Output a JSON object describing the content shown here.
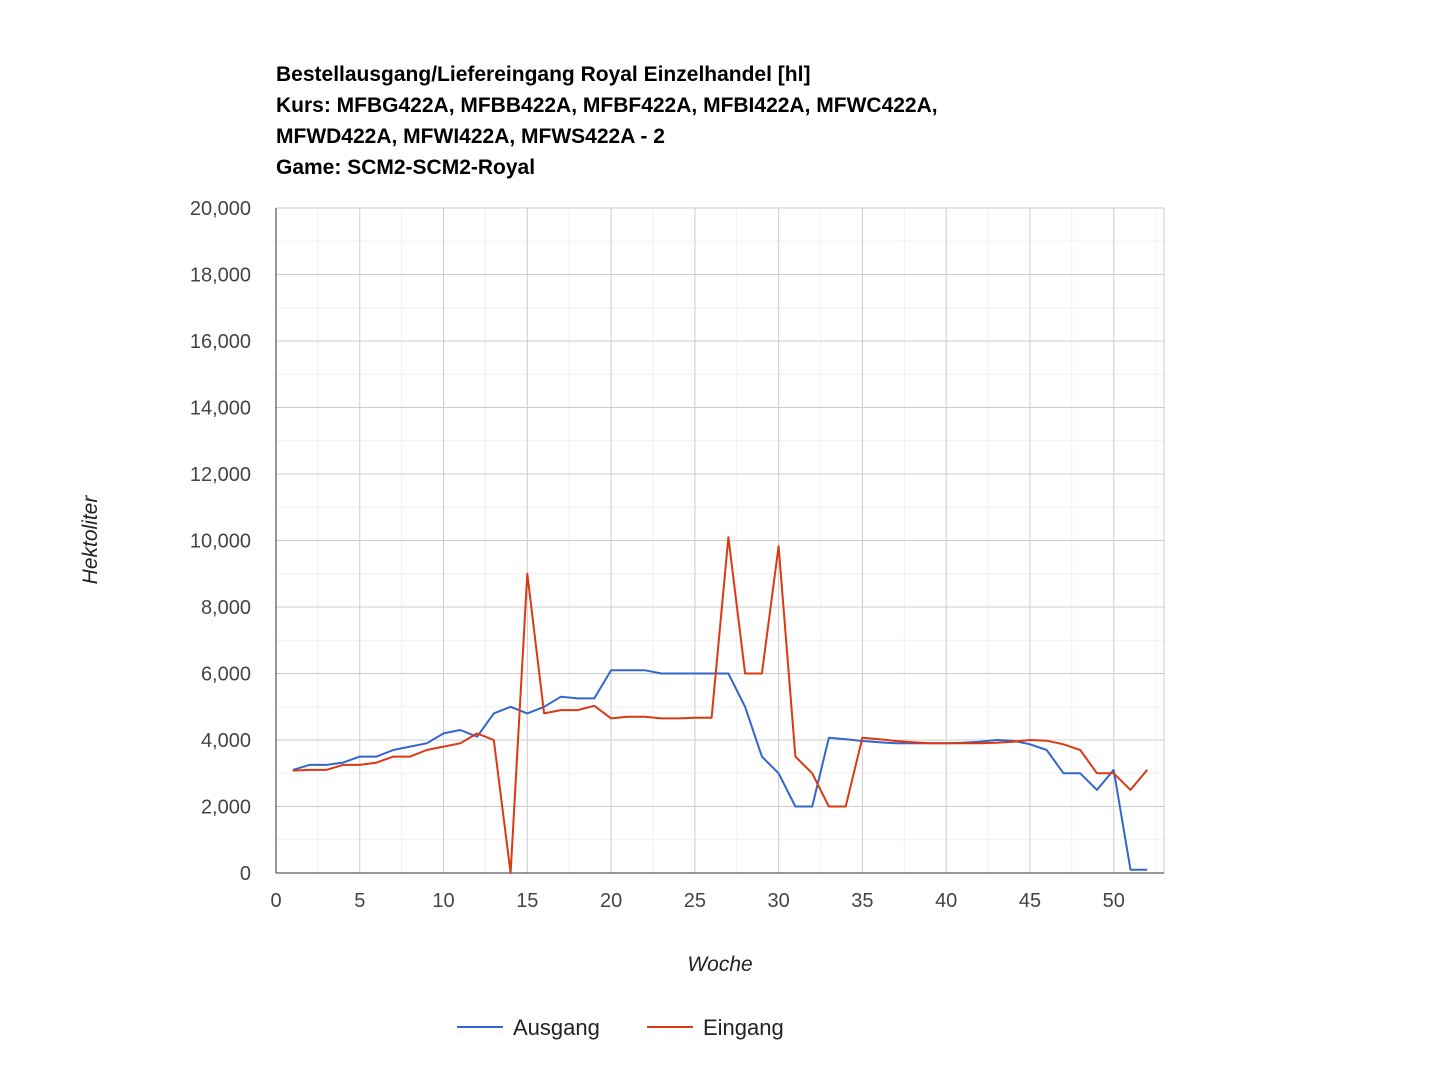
{
  "chart_data": {
    "type": "line",
    "title_lines": [
      "Bestellausgang/Liefereingang Royal Einzelhandel [hl]",
      "Kurs: MFBG422A, MFBB422A, MFBF422A, MFBI422A, MFWC422A,",
      "MFWD422A, MFWI422A, MFWS422A - 2",
      "Game: SCM2-SCM2-Royal"
    ],
    "xlabel": "Woche",
    "ylabel": "Hektoliter",
    "xlim": [
      0,
      53
    ],
    "ylim": [
      0,
      20000
    ],
    "x_ticks": [
      0,
      5,
      10,
      15,
      20,
      25,
      30,
      35,
      40,
      45,
      50
    ],
    "x_tick_labels": [
      "0",
      "5",
      "10",
      "15",
      "20",
      "25",
      "30",
      "35",
      "40",
      "45",
      "50"
    ],
    "y_ticks": [
      0,
      2000,
      4000,
      6000,
      8000,
      10000,
      12000,
      14000,
      16000,
      18000,
      20000
    ],
    "y_tick_labels": [
      "0",
      "2,000",
      "4,000",
      "6,000",
      "8,000",
      "10,000",
      "12,000",
      "14,000",
      "16,000",
      "18,000",
      "20,000"
    ],
    "grid": true,
    "legend_position": "bottom",
    "series": [
      {
        "name": "Ausgang",
        "color": "#3366cc",
        "x": [
          1,
          2,
          3,
          4,
          5,
          6,
          7,
          8,
          9,
          10,
          11,
          12,
          13,
          14,
          15,
          16,
          17,
          18,
          19,
          20,
          21,
          22,
          23,
          24,
          25,
          26,
          27,
          28,
          29,
          30,
          31,
          32,
          33,
          34,
          35,
          36,
          37,
          38,
          39,
          40,
          41,
          42,
          43,
          44,
          45,
          46,
          47,
          48,
          49,
          50,
          51,
          52
        ],
        "values": [
          3100,
          3250,
          3250,
          3320,
          3500,
          3500,
          3700,
          3800,
          3900,
          4200,
          4300,
          4100,
          4800,
          5000,
          4800,
          5000,
          5300,
          5250,
          5250,
          6100,
          6100,
          6100,
          6000,
          6000,
          6000,
          6000,
          6000,
          5000,
          3500,
          3000,
          2000,
          2000,
          4070,
          4020,
          3970,
          3930,
          3900,
          3900,
          3900,
          3900,
          3920,
          3950,
          4000,
          3980,
          3870,
          3700,
          3000,
          3000,
          2500,
          3100,
          100,
          100
        ]
      },
      {
        "name": "Eingang",
        "color": "#dc3912",
        "x": [
          1,
          2,
          3,
          4,
          5,
          6,
          7,
          8,
          9,
          10,
          11,
          12,
          13,
          14,
          15,
          16,
          17,
          18,
          19,
          20,
          21,
          22,
          23,
          24,
          25,
          26,
          27,
          28,
          29,
          30,
          31,
          32,
          33,
          34,
          35,
          36,
          37,
          38,
          39,
          40,
          41,
          42,
          43,
          44,
          45,
          46,
          47,
          48,
          49,
          50,
          51,
          52
        ],
        "values": [
          3080,
          3100,
          3100,
          3250,
          3250,
          3320,
          3500,
          3500,
          3700,
          3800,
          3900,
          4200,
          4000,
          0,
          9000,
          4800,
          4900,
          4900,
          5030,
          4650,
          4700,
          4700,
          4650,
          4650,
          4670,
          4670,
          10100,
          6000,
          6000,
          9830,
          3500,
          3000,
          2000,
          2000,
          4070,
          4020,
          3970,
          3930,
          3900,
          3900,
          3900,
          3900,
          3920,
          3950,
          4000,
          3980,
          3870,
          3700,
          3000,
          3000,
          2500,
          3100
        ]
      }
    ]
  }
}
